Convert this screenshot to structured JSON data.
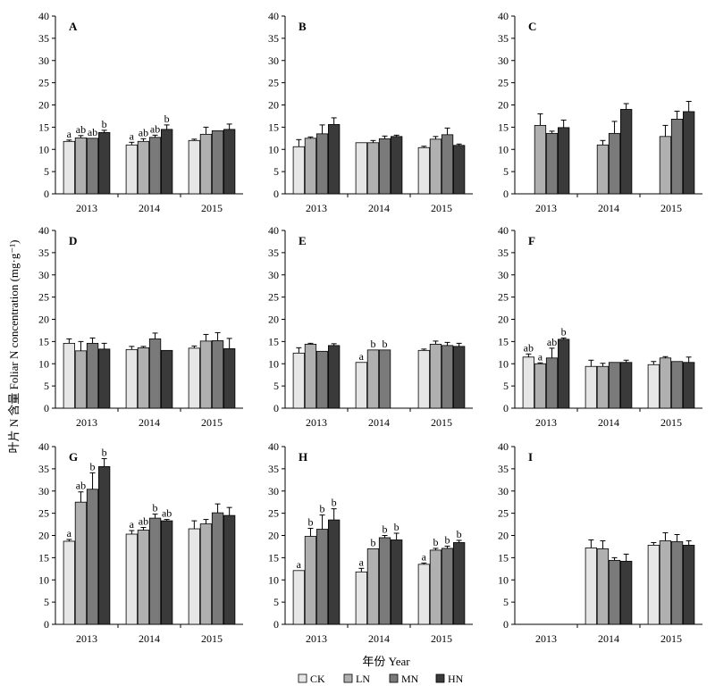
{
  "ylabel": "叶片 N 含量  Foliar N concentration (mg·g⁻¹)",
  "xlabel": "年份 Year",
  "colors": {
    "CK": "#e6e6e6",
    "LN": "#b0b0b0",
    "MN": "#7a7a7a",
    "HN": "#3a3a3a"
  },
  "chart_data": [
    {
      "panel": "A",
      "type": "bar",
      "categories": [
        "2013",
        "2014",
        "2015"
      ],
      "ylim": [
        0,
        40
      ],
      "series": [
        {
          "name": "CK",
          "values": [
            11.8,
            11.0,
            12.0
          ],
          "errors": [
            0.3,
            0.6,
            0.3
          ]
        },
        {
          "name": "LN",
          "values": [
            12.6,
            11.8,
            13.4
          ],
          "errors": [
            0.5,
            0.6,
            1.6
          ]
        },
        {
          "name": "MN",
          "values": [
            12.5,
            12.7,
            14.2
          ],
          "errors": [
            0.0,
            0.5,
            0.0
          ]
        },
        {
          "name": "HN",
          "values": [
            13.8,
            14.5,
            14.5
          ],
          "errors": [
            0.5,
            1.0,
            1.2
          ]
        }
      ],
      "labels": [
        [
          "a",
          "ab",
          "ab",
          "b"
        ],
        [
          "a",
          "ab",
          "ab",
          "b"
        ],
        [
          "",
          "",
          "",
          ""
        ]
      ]
    },
    {
      "panel": "B",
      "type": "bar",
      "categories": [
        "2013",
        "2014",
        "2015"
      ],
      "ylim": [
        0,
        40
      ],
      "series": [
        {
          "name": "CK",
          "values": [
            10.6,
            11.5,
            10.4
          ],
          "errors": [
            1.6,
            0.0,
            0.3
          ]
        },
        {
          "name": "LN",
          "values": [
            12.5,
            11.5,
            12.3
          ],
          "errors": [
            0.3,
            0.5,
            0.6
          ]
        },
        {
          "name": "MN",
          "values": [
            13.5,
            12.4,
            13.3
          ],
          "errors": [
            2.0,
            0.6,
            1.5
          ]
        },
        {
          "name": "HN",
          "values": [
            15.6,
            12.9,
            10.9
          ],
          "errors": [
            1.5,
            0.3,
            0.3
          ]
        }
      ],
      "labels": [
        [
          "",
          "",
          "",
          ""
        ],
        [
          "",
          "",
          "",
          ""
        ],
        [
          "",
          "",
          "",
          ""
        ]
      ]
    },
    {
      "panel": "C",
      "type": "bar",
      "categories": [
        "2013",
        "2014",
        "2015"
      ],
      "ylim": [
        0,
        40
      ],
      "series": [
        {
          "name": "CK",
          "values": [
            null,
            null,
            null
          ],
          "errors": [
            0,
            0,
            0
          ]
        },
        {
          "name": "LN",
          "values": [
            15.4,
            11.0,
            12.9
          ],
          "errors": [
            2.6,
            1.0,
            2.5
          ]
        },
        {
          "name": "MN",
          "values": [
            13.6,
            13.6,
            16.8
          ],
          "errors": [
            0.5,
            2.7,
            1.8
          ]
        },
        {
          "name": "HN",
          "values": [
            14.9,
            19.0,
            18.5
          ],
          "errors": [
            1.7,
            1.3,
            2.3
          ]
        }
      ],
      "labels": [
        [
          "",
          "",
          "",
          ""
        ],
        [
          "",
          "",
          "",
          ""
        ],
        [
          "",
          "",
          "",
          ""
        ]
      ]
    },
    {
      "panel": "D",
      "type": "bar",
      "categories": [
        "2013",
        "2014",
        "2015"
      ],
      "ylim": [
        0,
        40
      ],
      "series": [
        {
          "name": "CK",
          "values": [
            14.6,
            13.2,
            13.5
          ],
          "errors": [
            1.0,
            0.7,
            0.5
          ]
        },
        {
          "name": "LN",
          "values": [
            12.9,
            13.6,
            15.1
          ],
          "errors": [
            2.1,
            0.3,
            1.5
          ]
        },
        {
          "name": "MN",
          "values": [
            14.6,
            15.6,
            15.2
          ],
          "errors": [
            1.2,
            1.3,
            1.8
          ]
        },
        {
          "name": "HN",
          "values": [
            13.3,
            13.0,
            13.4
          ],
          "errors": [
            1.3,
            0.0,
            2.3
          ]
        }
      ],
      "labels": [
        [
          "",
          "",
          "",
          ""
        ],
        [
          "",
          "",
          "",
          ""
        ],
        [
          "",
          "",
          "",
          ""
        ]
      ]
    },
    {
      "panel": "E",
      "type": "bar",
      "categories": [
        "2013",
        "2014",
        "2015"
      ],
      "ylim": [
        0,
        40
      ],
      "series": [
        {
          "name": "CK",
          "values": [
            12.4,
            10.3,
            13.0
          ],
          "errors": [
            1.2,
            0.0,
            0.3
          ]
        },
        {
          "name": "LN",
          "values": [
            14.4,
            13.1,
            14.4
          ],
          "errors": [
            0.2,
            0.0,
            0.7
          ]
        },
        {
          "name": "MN",
          "values": [
            12.8,
            13.1,
            14.1
          ],
          "errors": [
            0.0,
            0.0,
            0.7
          ]
        },
        {
          "name": "HN",
          "values": [
            14.1,
            null,
            13.9
          ],
          "errors": [
            0.4,
            0,
            0.7
          ]
        }
      ],
      "labels": [
        [
          "",
          "",
          "",
          ""
        ],
        [
          "a",
          "b",
          "b",
          ""
        ],
        [
          "",
          "",
          "",
          ""
        ]
      ]
    },
    {
      "panel": "F",
      "type": "bar",
      "categories": [
        "2013",
        "2014",
        "2015"
      ],
      "ylim": [
        0,
        40
      ],
      "series": [
        {
          "name": "CK",
          "values": [
            11.5,
            9.4,
            9.8
          ],
          "errors": [
            0.7,
            1.4,
            0.7
          ]
        },
        {
          "name": "LN",
          "values": [
            10.0,
            9.4,
            11.3
          ],
          "errors": [
            0.2,
            0.7,
            0.3
          ]
        },
        {
          "name": "MN",
          "values": [
            11.3,
            10.3,
            10.5
          ],
          "errors": [
            2.2,
            0.0,
            0.0
          ]
        },
        {
          "name": "HN",
          "values": [
            15.5,
            10.3,
            10.3
          ],
          "errors": [
            0.3,
            0.5,
            1.2
          ]
        }
      ],
      "labels": [
        [
          "ab",
          "a",
          "ab",
          "b"
        ],
        [
          "",
          "",
          "",
          ""
        ],
        [
          "",
          "",
          "",
          ""
        ]
      ]
    },
    {
      "panel": "G",
      "type": "bar",
      "categories": [
        "2013",
        "2014",
        "2015"
      ],
      "ylim": [
        0,
        40
      ],
      "series": [
        {
          "name": "CK",
          "values": [
            18.7,
            20.3,
            21.5
          ],
          "errors": [
            0.4,
            0.8,
            1.8
          ]
        },
        {
          "name": "LN",
          "values": [
            27.5,
            21.2,
            22.6
          ],
          "errors": [
            2.3,
            0.6,
            1.0
          ]
        },
        {
          "name": "MN",
          "values": [
            30.4,
            23.9,
            25.1
          ],
          "errors": [
            3.7,
            0.9,
            2.0
          ]
        },
        {
          "name": "HN",
          "values": [
            35.5,
            23.3,
            24.5
          ],
          "errors": [
            1.8,
            0.3,
            1.8
          ]
        }
      ],
      "labels": [
        [
          "a",
          "ab",
          "b",
          "b"
        ],
        [
          "a",
          "ab",
          "b",
          "ab"
        ],
        [
          "",
          "",
          "",
          ""
        ]
      ]
    },
    {
      "panel": "H",
      "type": "bar",
      "categories": [
        "2013",
        "2014",
        "2015"
      ],
      "ylim": [
        0,
        40
      ],
      "series": [
        {
          "name": "CK",
          "values": [
            12.1,
            11.8,
            13.5
          ],
          "errors": [
            0.0,
            0.8,
            0.3
          ]
        },
        {
          "name": "LN",
          "values": [
            19.8,
            17.0,
            16.7
          ],
          "errors": [
            1.8,
            0.0,
            0.4
          ]
        },
        {
          "name": "MN",
          "values": [
            21.4,
            19.5,
            17.1
          ],
          "errors": [
            3.2,
            0.5,
            0.5
          ]
        },
        {
          "name": "HN",
          "values": [
            23.5,
            19.0,
            18.4
          ],
          "errors": [
            2.5,
            1.5,
            0.5
          ]
        }
      ],
      "labels": [
        [
          "a",
          "b",
          "b",
          "b"
        ],
        [
          "a",
          "b",
          "b",
          "b"
        ],
        [
          "a",
          "b",
          "b",
          "b"
        ]
      ]
    },
    {
      "panel": "I",
      "type": "bar",
      "categories": [
        "2013",
        "2014",
        "2015"
      ],
      "ylim": [
        0,
        40
      ],
      "series": [
        {
          "name": "CK",
          "values": [
            null,
            17.2,
            17.8
          ],
          "errors": [
            0,
            1.8,
            0.6
          ]
        },
        {
          "name": "LN",
          "values": [
            null,
            17.0,
            18.8
          ],
          "errors": [
            0,
            1.8,
            1.8
          ]
        },
        {
          "name": "MN",
          "values": [
            null,
            14.4,
            18.6
          ],
          "errors": [
            0,
            0.6,
            1.6
          ]
        },
        {
          "name": "HN",
          "values": [
            null,
            14.2,
            17.8
          ],
          "errors": [
            0,
            1.6,
            1.0
          ]
        }
      ],
      "labels": [
        [
          "",
          "",
          "",
          ""
        ],
        [
          "",
          "",
          "",
          ""
        ],
        [
          "",
          "",
          "",
          ""
        ]
      ]
    }
  ],
  "legend": {
    "items": [
      "CK",
      "LN",
      "MN",
      "HN"
    ],
    "position": "bottom"
  }
}
